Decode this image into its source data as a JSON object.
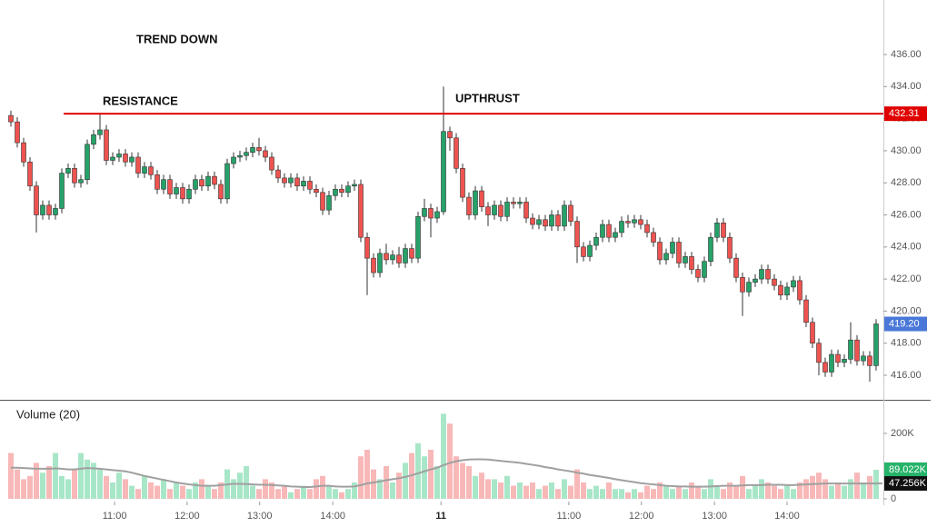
{
  "chart_data": {
    "type": "candlestick",
    "annotations": [
      "TREND DOWN",
      "RESISTANCE",
      "UPTHRUST"
    ],
    "volume_title": "Volume (20)",
    "up_color": "#26a269",
    "down_color": "#ef5350",
    "volume_up_color": "#a8e6c8",
    "volume_down_color": "#f8b8b8",
    "ma_color": "#a0a0a0",
    "ylim": [
      414.47,
      439.4
    ],
    "yticks": [
      {
        "value": 416,
        "label": "416.00"
      },
      {
        "value": 418,
        "label": "418.00"
      },
      {
        "value": 420,
        "label": "420.00"
      },
      {
        "value": 422,
        "label": "422.00"
      },
      {
        "value": 424,
        "label": "424.00"
      },
      {
        "value": 426,
        "label": "426.00"
      },
      {
        "value": 428,
        "label": "428.00"
      },
      {
        "value": 430,
        "label": "430.00"
      },
      {
        "value": 432,
        "label": "432.00"
      },
      {
        "value": 434,
        "label": "434.00"
      },
      {
        "value": 436,
        "label": "436.00"
      }
    ],
    "vol_ylim": [
      0,
      300000
    ],
    "vol_yticks": [
      0,
      {
        "value": 200000,
        "label": "200K"
      }
    ],
    "xticks": [
      {
        "value": 16.3,
        "label": "11:00"
      },
      {
        "value": 27.7,
        "label": "12:00"
      },
      {
        "value": 39.1,
        "label": "13:00"
      },
      {
        "value": 50.6,
        "label": "14:00"
      },
      {
        "value": 67.6,
        "label": "11"
      },
      {
        "value": 87.7,
        "label": "11:00"
      },
      {
        "value": 99.1,
        "label": "12:00"
      },
      {
        "value": 110.6,
        "label": "13:00"
      },
      {
        "value": 122,
        "label": "14:00"
      }
    ],
    "resistance": {
      "value": 432.31,
      "label": "432.31",
      "color": "#e00000"
    },
    "last_close_label": "419.20",
    "last_close_color": "#4a78d8",
    "last_volume_label": "89.022K",
    "last_volume_color": "#26b36a",
    "last_ma_label": "47.256K",
    "open": [
      432.2,
      431.8,
      430.5,
      429.3,
      427.8,
      426.0,
      426.6,
      426.0,
      426.4,
      428.6,
      428.9,
      428.0,
      428.2,
      430.4,
      431.0,
      431.3,
      429.4,
      429.6,
      429.8,
      429.3,
      429.6,
      428.6,
      429.0,
      428.5,
      427.6,
      428.2,
      427.3,
      427.7,
      427.0,
      427.6,
      428.2,
      427.8,
      428.4,
      427.9,
      427.0,
      429.2,
      429.6,
      429.7,
      429.9,
      430.2,
      430.0,
      429.6,
      428.8,
      428.3,
      428.0,
      428.3,
      427.8,
      428.1,
      427.6,
      427.4,
      426.3,
      427.2,
      427.6,
      427.4,
      427.8,
      427.9,
      424.6,
      423.3,
      422.4,
      423.6,
      423.2,
      423.5,
      423.0,
      423.9,
      423.3,
      425.9,
      426.4,
      425.8,
      426.2,
      431.2,
      430.8,
      428.9,
      427.1,
      426.0,
      427.5,
      426.5,
      426.0,
      426.6,
      425.9,
      426.8,
      426.7,
      426.8,
      425.8,
      425.4,
      425.7,
      425.3,
      426.0,
      425.3,
      426.6,
      425.6,
      424.0,
      423.4,
      424.1,
      424.6,
      425.4,
      424.6,
      424.9,
      425.6,
      425.5,
      425.7,
      425.4,
      424.9,
      424.3,
      423.2,
      423.6,
      424.3,
      423.0,
      423.4,
      422.6,
      422.1,
      423.1,
      424.6,
      425.5,
      424.6,
      423.3,
      422.1,
      421.2,
      421.8,
      422.0,
      422.6,
      422.0,
      421.6,
      421.0,
      421.5,
      421.9,
      420.7,
      419.3,
      418.0,
      416.8,
      416.2,
      417.3,
      416.8,
      417.0,
      418.2,
      416.9,
      417.2,
      416.6
    ],
    "high": [
      432.5,
      432.1,
      430.8,
      429.6,
      428.1,
      426.9,
      426.9,
      426.7,
      428.9,
      429.2,
      429.2,
      428.5,
      430.7,
      431.3,
      432.3,
      431.6,
      429.9,
      430.1,
      430.1,
      429.9,
      429.9,
      429.3,
      429.3,
      428.8,
      428.5,
      428.5,
      428.0,
      428.0,
      427.9,
      428.5,
      428.5,
      428.7,
      428.7,
      428.2,
      429.5,
      429.9,
      430.0,
      430.2,
      430.5,
      430.8,
      430.3,
      429.9,
      429.1,
      428.6,
      428.6,
      428.6,
      428.4,
      428.4,
      427.9,
      427.7,
      427.5,
      427.9,
      427.9,
      428.1,
      428.2,
      428.2,
      424.9,
      423.6,
      423.9,
      424.2,
      423.8,
      424.0,
      424.2,
      424.2,
      426.2,
      427.0,
      426.7,
      426.5,
      434.0,
      431.5,
      431.1,
      429.2,
      427.4,
      427.8,
      427.8,
      426.8,
      426.9,
      426.9,
      427.1,
      427.1,
      427.1,
      427.1,
      426.1,
      426.0,
      426.0,
      426.3,
      426.3,
      426.9,
      426.9,
      425.9,
      424.3,
      424.4,
      424.9,
      425.7,
      425.7,
      425.2,
      425.9,
      426.0,
      426.0,
      426.0,
      425.7,
      425.2,
      424.6,
      423.9,
      424.6,
      424.6,
      423.7,
      423.7,
      422.9,
      423.4,
      424.9,
      425.8,
      425.8,
      424.9,
      423.6,
      422.4,
      422.1,
      422.3,
      422.9,
      422.9,
      422.3,
      421.9,
      421.8,
      422.2,
      422.2,
      421.0,
      419.6,
      418.3,
      417.1,
      417.6,
      417.6,
      417.3,
      419.3,
      418.5,
      417.5,
      417.5,
      419.5
    ],
    "low": [
      431.5,
      430.2,
      429.0,
      427.5,
      424.9,
      425.7,
      425.7,
      425.7,
      426.1,
      428.3,
      427.7,
      427.7,
      427.9,
      430.1,
      430.7,
      429.1,
      429.1,
      429.3,
      429.0,
      429.0,
      428.3,
      428.3,
      428.2,
      427.3,
      427.3,
      427.0,
      427.0,
      426.7,
      426.7,
      427.3,
      427.5,
      427.5,
      427.6,
      426.7,
      426.7,
      428.9,
      429.3,
      429.4,
      429.6,
      429.7,
      429.3,
      428.5,
      428.0,
      427.7,
      427.7,
      427.5,
      427.5,
      427.3,
      427.1,
      426.0,
      426.0,
      426.9,
      427.1,
      427.1,
      427.5,
      424.3,
      421.0,
      422.1,
      422.1,
      422.9,
      422.9,
      422.7,
      422.7,
      423.0,
      423.0,
      425.6,
      424.6,
      425.5,
      426.0,
      430.0,
      428.6,
      426.8,
      425.7,
      425.7,
      426.2,
      425.3,
      425.7,
      425.6,
      425.6,
      426.4,
      426.4,
      425.5,
      425.1,
      425.1,
      425.0,
      425.0,
      425.0,
      425.0,
      425.3,
      423.0,
      423.1,
      423.1,
      423.8,
      424.3,
      424.3,
      424.3,
      424.6,
      425.2,
      425.2,
      425.1,
      424.6,
      424.0,
      422.9,
      422.9,
      423.3,
      422.7,
      422.7,
      422.3,
      421.8,
      421.8,
      422.8,
      424.3,
      424.3,
      423.0,
      421.8,
      419.7,
      420.9,
      421.5,
      421.7,
      421.7,
      421.3,
      420.7,
      420.7,
      421.2,
      420.4,
      419.0,
      417.7,
      416.0,
      415.9,
      415.9,
      416.5,
      416.5,
      416.7,
      416.6,
      416.6,
      415.6,
      416.3
    ],
    "close": [
      431.8,
      430.5,
      429.3,
      427.8,
      426.0,
      426.6,
      426.0,
      426.4,
      428.6,
      428.9,
      428.0,
      428.2,
      430.4,
      431.0,
      431.3,
      429.4,
      429.6,
      429.8,
      429.3,
      429.6,
      428.6,
      429.0,
      428.5,
      427.6,
      428.2,
      427.3,
      427.7,
      427.0,
      427.6,
      428.2,
      427.8,
      428.4,
      427.9,
      427.0,
      429.2,
      429.6,
      429.7,
      429.9,
      430.2,
      430.0,
      429.6,
      428.8,
      428.3,
      428.0,
      428.3,
      427.8,
      428.1,
      427.6,
      427.4,
      426.3,
      427.2,
      427.6,
      427.4,
      427.8,
      427.9,
      424.6,
      423.3,
      422.4,
      423.6,
      423.2,
      423.5,
      423.0,
      423.9,
      423.3,
      425.9,
      426.4,
      425.8,
      426.2,
      431.2,
      430.8,
      428.9,
      427.1,
      426.0,
      427.5,
      426.5,
      426.0,
      426.6,
      425.9,
      426.8,
      426.7,
      426.8,
      425.8,
      425.4,
      425.7,
      425.3,
      426.0,
      425.3,
      426.6,
      425.6,
      424.0,
      423.4,
      424.1,
      424.6,
      425.4,
      424.6,
      424.9,
      425.6,
      425.5,
      425.7,
      425.4,
      424.9,
      424.3,
      423.2,
      423.6,
      424.3,
      423.0,
      423.4,
      422.6,
      422.1,
      423.1,
      424.6,
      425.5,
      424.6,
      423.3,
      422.1,
      421.2,
      421.8,
      422.0,
      422.6,
      422.0,
      421.6,
      421.0,
      421.5,
      421.9,
      420.7,
      419.3,
      418.0,
      416.8,
      416.2,
      417.3,
      416.8,
      417.0,
      418.2,
      416.9,
      417.2,
      416.6,
      419.2
    ],
    "volume": [
      140000,
      90000,
      60000,
      70000,
      110000,
      80000,
      100000,
      140000,
      70000,
      60000,
      90000,
      140000,
      120000,
      110000,
      90000,
      70000,
      50000,
      80000,
      60000,
      40000,
      30000,
      70000,
      50000,
      40000,
      60000,
      30000,
      50000,
      40000,
      30000,
      50000,
      60000,
      40000,
      30000,
      50000,
      90000,
      60000,
      80000,
      100000,
      40000,
      30000,
      60000,
      50000,
      30000,
      40000,
      20000,
      30000,
      40000,
      30000,
      60000,
      70000,
      40000,
      30000,
      20000,
      30000,
      50000,
      130000,
      150000,
      90000,
      60000,
      100000,
      50000,
      80000,
      110000,
      140000,
      170000,
      130000,
      150000,
      100000,
      260000,
      230000,
      130000,
      110000,
      100000,
      70000,
      80000,
      60000,
      60000,
      50000,
      70000,
      40000,
      50000,
      40000,
      50000,
      30000,
      40000,
      50000,
      30000,
      60000,
      40000,
      90000,
      50000,
      30000,
      40000,
      30000,
      50000,
      30000,
      30000,
      20000,
      30000,
      20000,
      40000,
      30000,
      50000,
      40000,
      30000,
      40000,
      30000,
      50000,
      40000,
      30000,
      60000,
      40000,
      30000,
      50000,
      40000,
      70000,
      30000,
      40000,
      60000,
      50000,
      40000,
      30000,
      40000,
      30000,
      50000,
      60000,
      70000,
      80000,
      60000,
      40000,
      50000,
      40000,
      60000,
      80000,
      50000,
      70000,
      89022
    ],
    "ma": [
      95000,
      95000,
      94000,
      93000,
      92000,
      92000,
      92000,
      93000,
      92000,
      90000,
      90000,
      92000,
      94000,
      93000,
      92000,
      90000,
      88000,
      86000,
      84000,
      80000,
      75000,
      70000,
      66000,
      62000,
      58000,
      54000,
      50000,
      47000,
      44000,
      42000,
      40000,
      40000,
      40000,
      42000,
      44000,
      46000,
      46000,
      45000,
      44000,
      43000,
      43000,
      42000,
      41000,
      40000,
      38000,
      37000,
      36000,
      36000,
      38000,
      40000,
      40000,
      38000,
      37000,
      37000,
      38000,
      42000,
      47000,
      50000,
      53000,
      57000,
      60000,
      63000,
      67000,
      72000,
      78000,
      84000,
      90000,
      95000,
      103000,
      110000,
      115000,
      118000,
      120000,
      121000,
      121000,
      120000,
      118000,
      116000,
      114000,
      112000,
      110000,
      107000,
      104000,
      101000,
      97000,
      94000,
      90000,
      87000,
      84000,
      80000,
      77000,
      73000,
      70000,
      67000,
      64000,
      60000,
      57000,
      54000,
      51000,
      48000,
      46000,
      44000,
      42000,
      40000,
      39000,
      38000,
      38000,
      37000,
      37000,
      37000,
      38000,
      39000,
      40000,
      40000,
      40000,
      41000,
      42000,
      42000,
      42000,
      43000,
      43000,
      43000,
      42000,
      42000,
      43000,
      44000,
      45000,
      46000,
      47000,
      47000,
      47000,
      47000,
      47000,
      47000,
      47000,
      47000,
      47000,
      47256
    ]
  }
}
